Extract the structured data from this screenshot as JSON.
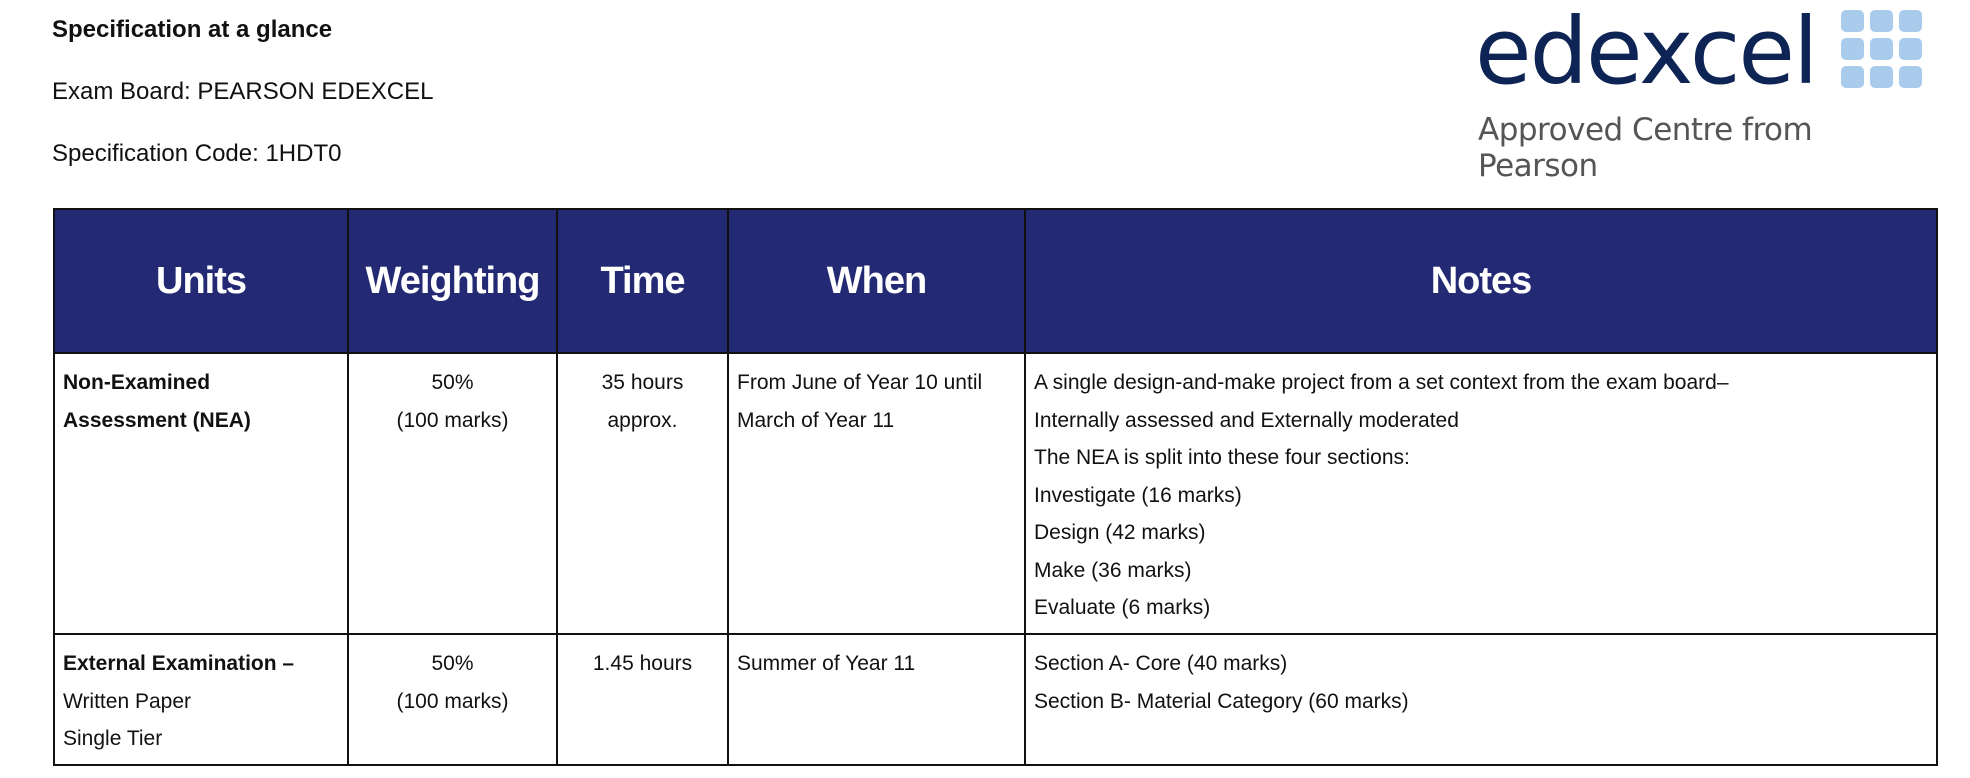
{
  "header": {
    "title": "Specification at a glance",
    "exam_board": "Exam Board: PEARSON EDEXCEL",
    "spec_code": "Specification Code: 1HDT0"
  },
  "logo": {
    "wordmark": "edexcel",
    "subtitle": "Approved Centre from Pearson",
    "wordmark_color": "#0d2454",
    "squares_color": "#a9cbec"
  },
  "table": {
    "header_color": "#232a73",
    "columns": [
      "Units",
      "Weighting",
      "Time",
      "When",
      "Notes"
    ],
    "rows": [
      {
        "unit": [
          "Non-Examined",
          "Assessment (NEA)"
        ],
        "unit_bold_lines": 2,
        "weighting": [
          "50%",
          "(100 marks)"
        ],
        "time": [
          "35 hours",
          "approx."
        ],
        "when": [
          "From June of Year 10 until",
          "March of Year 11"
        ],
        "notes": [
          "A single design-and-make project from a set context from the exam board–",
          "Internally assessed and  Externally moderated",
          "The  NEA is split into these four sections:",
          "Investigate (16 marks)",
          "Design (42 marks)",
          "Make (36 marks)",
          "Evaluate (6 marks)"
        ]
      },
      {
        "unit": [
          "External  Examination –",
          "Written Paper",
          "Single Tier"
        ],
        "unit_bold_lines": 1,
        "weighting": [
          "50%",
          "(100 marks)"
        ],
        "time": [
          "1.45 hours"
        ],
        "when": [
          "Summer of Year 11"
        ],
        "notes": [
          "Section A- Core (40 marks)",
          "Section  B-  Material Category (60 marks)"
        ]
      }
    ]
  }
}
